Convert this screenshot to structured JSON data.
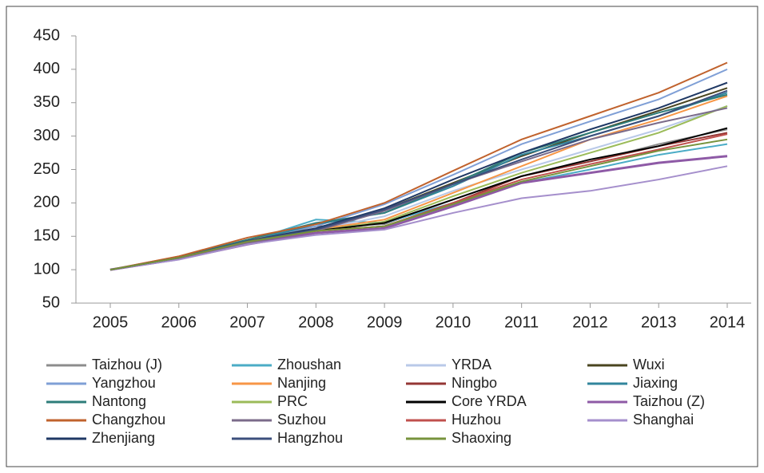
{
  "chart_data": {
    "type": "line",
    "x": [
      2005,
      2006,
      2007,
      2008,
      2009,
      2010,
      2011,
      2012,
      2013,
      2014
    ],
    "xlim": [
      2005,
      2014
    ],
    "xticks": [
      2005,
      2006,
      2007,
      2008,
      2009,
      2010,
      2011,
      2012,
      2013,
      2014
    ],
    "ylim": [
      50,
      450
    ],
    "yticks": [
      50,
      100,
      150,
      200,
      250,
      300,
      350,
      400,
      450
    ],
    "grid": false,
    "legend": "bottom",
    "series": [
      {
        "name": "Taizhou (J)",
        "color": "#8c8c8c",
        "values": [
          100,
          118,
          142,
          165,
          168,
          205,
          240,
          262,
          288,
          310
        ]
      },
      {
        "name": "Zhoushan",
        "color": "#4bacc6",
        "values": [
          100,
          117,
          142,
          175,
          170,
          200,
          230,
          250,
          272,
          288
        ]
      },
      {
        "name": "YRDA",
        "color": "#b9c9e8",
        "values": [
          100,
          118,
          142,
          160,
          180,
          218,
          250,
          280,
          310,
          345
        ]
      },
      {
        "name": "Wuxi",
        "color": "#4a4520",
        "values": [
          100,
          118,
          142,
          160,
          190,
          230,
          270,
          305,
          338,
          372
        ]
      },
      {
        "name": "Yangzhou",
        "color": "#7f9fd6",
        "values": [
          100,
          119,
          145,
          165,
          198,
          242,
          288,
          322,
          355,
          400
        ]
      },
      {
        "name": "Nanjing",
        "color": "#f79646",
        "values": [
          100,
          120,
          145,
          160,
          175,
          215,
          255,
          295,
          325,
          360
        ]
      },
      {
        "name": "Ningbo",
        "color": "#943634",
        "values": [
          100,
          118,
          142,
          158,
          165,
          200,
          240,
          262,
          285,
          305
        ]
      },
      {
        "name": "Jiaxing",
        "color": "#31859c",
        "values": [
          100,
          118,
          142,
          168,
          185,
          225,
          272,
          300,
          330,
          365
        ]
      },
      {
        "name": "Nantong",
        "color": "#2e7d7a",
        "values": [
          100,
          119,
          145,
          170,
          185,
          228,
          275,
          305,
          335,
          362
        ]
      },
      {
        "name": "PRC",
        "color": "#9bbb59",
        "values": [
          100,
          118,
          142,
          158,
          172,
          210,
          245,
          275,
          305,
          345
        ]
      },
      {
        "name": "Core YRDA",
        "color": "#000000",
        "values": [
          100,
          117,
          140,
          158,
          170,
          205,
          240,
          265,
          285,
          312
        ]
      },
      {
        "name": "Taizhou (Z)",
        "color": "#8e5aa6",
        "values": [
          100,
          116,
          138,
          155,
          162,
          195,
          230,
          245,
          260,
          270
        ]
      },
      {
        "name": "Changzhou",
        "color": "#c0622d",
        "values": [
          100,
          120,
          148,
          168,
          200,
          248,
          295,
          330,
          365,
          410
        ]
      },
      {
        "name": "Suzhou",
        "color": "#7b6b8a",
        "values": [
          100,
          117,
          140,
          158,
          188,
          228,
          262,
          295,
          320,
          342
        ]
      },
      {
        "name": "Huzhou",
        "color": "#c0504d",
        "values": [
          100,
          118,
          142,
          158,
          165,
          200,
          235,
          258,
          280,
          303
        ]
      },
      {
        "name": "Shanghai",
        "color": "#a58fcc",
        "values": [
          100,
          115,
          138,
          152,
          160,
          185,
          207,
          218,
          235,
          255
        ]
      },
      {
        "name": "Zhenjiang",
        "color": "#1f3864",
        "values": [
          100,
          118,
          143,
          162,
          192,
          235,
          275,
          310,
          342,
          380
        ]
      },
      {
        "name": "Hangzhou",
        "color": "#3c4f7c",
        "values": [
          100,
          118,
          143,
          160,
          190,
          228,
          265,
          300,
          330,
          368
        ]
      },
      {
        "name": "Shaoxing",
        "color": "#77933c",
        "values": [
          100,
          118,
          142,
          158,
          165,
          198,
          232,
          255,
          278,
          295
        ]
      }
    ]
  }
}
